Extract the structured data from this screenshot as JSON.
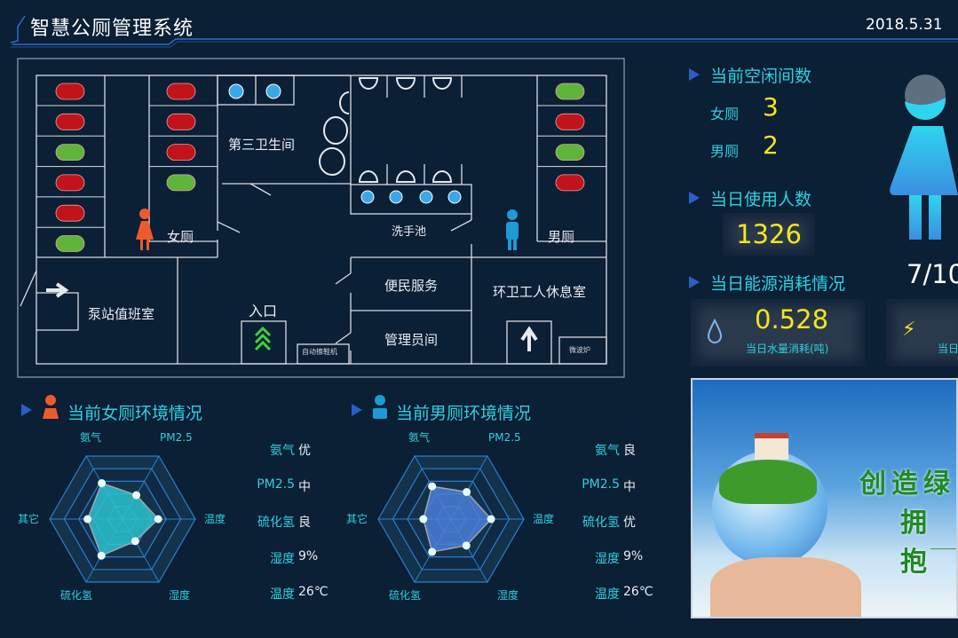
{
  "header": {
    "title": "智慧公厕管理系统",
    "date": "2018.5.31"
  },
  "floorplan": {
    "rooms": {
      "third": "第三卫生间",
      "female": "女厕",
      "male": "男厕",
      "wash": "洗手池",
      "pump": "泵站值班室",
      "entrance": "入口",
      "service": "便民服务",
      "admin": "管理员间",
      "worker": "环卫工人休息室",
      "shoe": "自动擦鞋机",
      "microwave": "微波炉"
    },
    "female_stalls_col1": [
      "occupied",
      "occupied",
      "free",
      "occupied",
      "occupied",
      "free"
    ],
    "female_stalls_col2": [
      "occupied",
      "occupied",
      "occupied",
      "free"
    ],
    "male_stalls": [
      "free",
      "occupied",
      "free",
      "occupied"
    ],
    "colors": {
      "occupied": "#c0141a",
      "free": "#5fb43a",
      "female": "#ee5a2c",
      "male": "#1e9ad6",
      "line": "#d8dde3"
    }
  },
  "stats": {
    "vacant_title": "当前空闲间数",
    "female_label": "女厕",
    "female_vacant": "3",
    "male_label": "男厕",
    "male_vacant": "2",
    "usage_title": "当日使用人数",
    "usage_count": "1326",
    "energy_title": "当日能源消耗情况",
    "water_value": "0.528",
    "water_label": "当日水量消耗(吨)",
    "power_label": "当日",
    "occupancy": "7/10",
    "occupancy_fraction": 0.7
  },
  "env_female": {
    "title": "当前女厕环境情况",
    "axes": [
      "氨气",
      "PM2.5",
      "温度",
      "湿度",
      "硫化氢",
      "其它"
    ],
    "values": [
      57,
      38,
      49,
      35,
      58,
      48
    ],
    "max": 100,
    "readings": [
      {
        "k": "氨气",
        "v": "优"
      },
      {
        "k": "PM2.5",
        "v": "中"
      },
      {
        "k": "硫化氢",
        "v": "良"
      },
      {
        "k": "湿度",
        "v": "9%"
      },
      {
        "k": "温度",
        "v": "26℃"
      }
    ],
    "color": "#2bc3cf"
  },
  "env_male": {
    "title": "当前男厕环境情况",
    "axes": [
      "氨气",
      "PM2.5",
      "温度",
      "湿度",
      "硫化氢",
      "其它"
    ],
    "values": [
      52,
      43,
      55,
      42,
      52,
      38
    ],
    "max": 100,
    "readings": [
      {
        "k": "氨气",
        "v": "良"
      },
      {
        "k": "PM2.5",
        "v": "中"
      },
      {
        "k": "硫化氢",
        "v": "优"
      },
      {
        "k": "湿度",
        "v": "9%"
      },
      {
        "k": "温度",
        "v": "26℃"
      }
    ],
    "color": "#4a7fd8"
  },
  "banner": {
    "line1": "创造绿",
    "line2": "拥抱"
  }
}
